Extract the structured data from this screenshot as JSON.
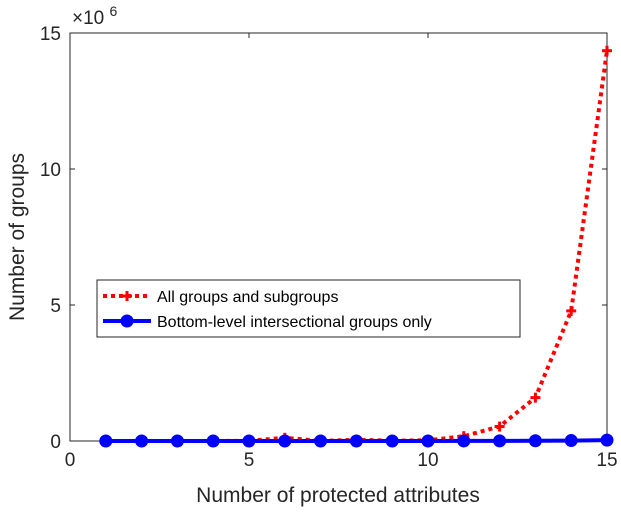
{
  "chart_data": {
    "type": "line",
    "xlabel": "Number of protected attributes",
    "ylabel": "Number of groups",
    "y_multiplier_base": "×10",
    "y_multiplier_exp": "6",
    "xlim": [
      0,
      15
    ],
    "ylim": [
      0,
      15
    ],
    "x_ticks": [
      0,
      5,
      10,
      15
    ],
    "y_ticks": [
      0,
      5,
      10,
      15
    ],
    "x_tick_labels": [
      "0",
      "5",
      "10",
      "15"
    ],
    "y_tick_labels": [
      "0",
      "5",
      "10",
      "15"
    ],
    "grid": false,
    "legend_position": "center-left",
    "x": [
      1,
      2,
      3,
      4,
      5,
      6,
      7,
      8,
      9,
      10,
      11,
      12,
      13,
      14,
      15
    ],
    "series": [
      {
        "name": "All groups and subgroups",
        "color": "#ff0000",
        "style": "dotted",
        "marker": "plus",
        "values": [
          1e-06,
          8e-06,
          6.3e-05,
          0.000624,
          0.007775,
          0.117648,
          0.002097,
          0.043046,
          0.01,
          0.0259,
          0.1771,
          0.5314,
          1.594,
          4.783,
          14.349
        ]
      },
      {
        "name": "Bottom-level intersectional groups only",
        "color": "#0000ff",
        "style": "solid",
        "marker": "circle",
        "values": [
          2e-06,
          4e-06,
          8e-06,
          1.6e-05,
          3.2e-05,
          6.4e-05,
          0.000128,
          0.000256,
          0.000512,
          0.001024,
          0.002048,
          0.004096,
          0.008192,
          0.016384,
          0.032768
        ]
      }
    ]
  }
}
